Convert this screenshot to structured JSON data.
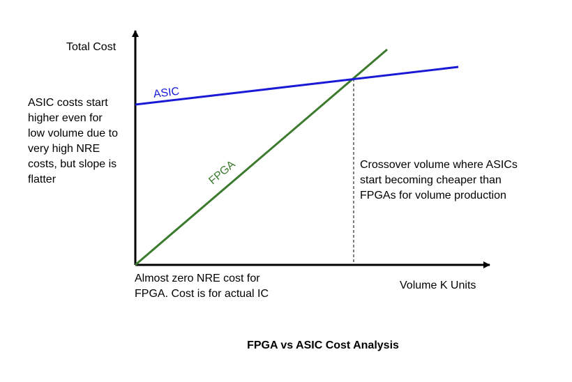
{
  "diagram": {
    "title": "FPGA vs ASIC Cost Analysis",
    "y_axis_label": "Total Cost",
    "x_axis_label": "Volume K Units",
    "lines": [
      {
        "label": "ASIC"
      },
      {
        "label": "FPGA"
      }
    ],
    "notes": {
      "asic_note": [
        "ASIC costs start",
        "higher even for",
        "low volume due to",
        "very high NRE",
        "costs, but slope is",
        "flatter"
      ],
      "crossover_note": [
        "Crossover volume where ASICs",
        "start becoming cheaper than",
        "FPGAs for volume production"
      ],
      "fpga_note": [
        "Almost zero NRE cost for",
        "FPGA. Cost is for actual IC"
      ]
    }
  }
}
